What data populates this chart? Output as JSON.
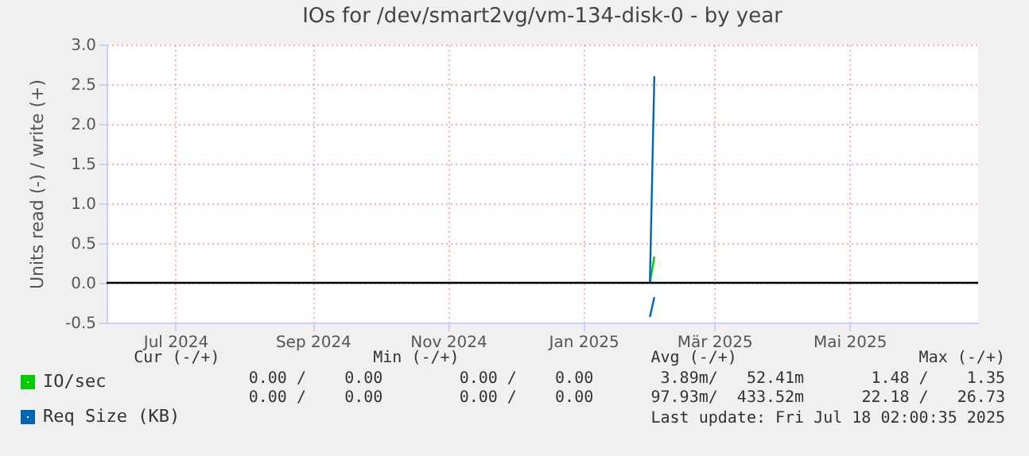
{
  "chart_data": {
    "type": "line",
    "title": "IOs for /dev/smart2vg/vm-134-disk-0 - by year",
    "ylabel": "Units read (-) / write (+)",
    "x": [
      "2025-01-31",
      "2025-02-02"
    ],
    "series": [
      {
        "name": "IO/sec",
        "color": "#00cc00",
        "values": [
          0,
          0.33
        ]
      },
      {
        "name": "Req Size (KB)",
        "color": "#0066b3",
        "values": [
          0,
          2.6
        ]
      },
      {
        "color": "#0066b3",
        "values": [
          -0.43,
          -0.18
        ]
      }
    ],
    "xlim": [
      "2024-05-31",
      "2025-06-28"
    ],
    "xticks": [
      {
        "value": "2024-07-01",
        "label": "Jul 2024"
      },
      {
        "value": "2024-09-01",
        "label": "Sep 2024"
      },
      {
        "value": "2024-11-01",
        "label": "Nov 2024"
      },
      {
        "value": "2025-01-01",
        "label": "Jan 2025"
      },
      {
        "value": "2025-03-01",
        "label": "Mär 2025"
      },
      {
        "value": "2025-05-01",
        "label": "Mai 2025"
      }
    ],
    "ylim": [
      -0.5,
      3.0
    ],
    "yticks": [
      {
        "value": -0.5,
        "label": "-0.5"
      },
      {
        "value": 0,
        "label": "0.0"
      },
      {
        "value": 0.5,
        "label": "0.5"
      },
      {
        "value": 1,
        "label": "1.0"
      },
      {
        "value": 1.5,
        "label": "1.5"
      },
      {
        "value": 2,
        "label": "2.0"
      },
      {
        "value": 2.5,
        "label": "2.5"
      },
      {
        "value": 3,
        "label": "3.0"
      }
    ],
    "ref_lines": [
      {
        "axis": "y",
        "value": 0,
        "color": "#000000"
      }
    ],
    "grid": true,
    "legend": "bottom left",
    "line_style": "solid",
    "annotations": [
      "Cur (-/+)                Min (-/+)                    Avg (-/+)                   Max (-/+)",
      "0.00 /    0.00        0.00 /    0.00       3.89m/   52.41m       1.48 /    1.35",
      "0.00 /    0.00        0.00 /    0.00      97.93m/  433.52m      22.18 /   26.73",
      "Last update: Fri Jul 18 02:00:35 2025"
    ]
  }
}
